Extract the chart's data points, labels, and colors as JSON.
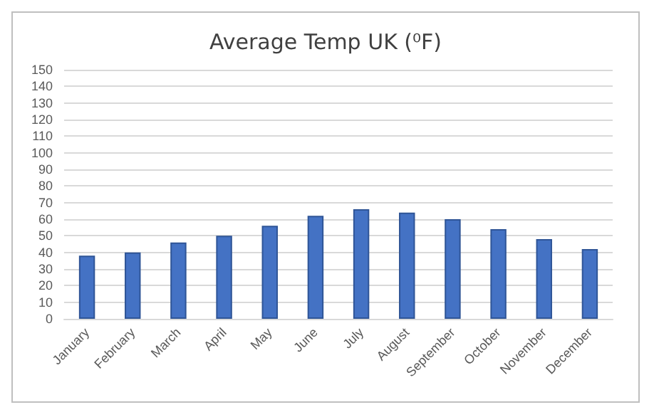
{
  "chart_data": {
    "type": "bar",
    "title": "Average Temp UK (⁰F)",
    "categories": [
      "January",
      "February",
      "March",
      "April",
      "May",
      "June",
      "July",
      "August",
      "September",
      "October",
      "November",
      "December"
    ],
    "values": [
      38,
      40,
      46,
      50,
      56,
      62,
      66,
      64,
      60,
      54,
      48,
      42
    ],
    "color": "#4472c4",
    "ylim": [
      0,
      150
    ],
    "yticks": [
      0,
      10,
      20,
      30,
      40,
      50,
      60,
      70,
      80,
      90,
      100,
      110,
      120,
      130,
      140,
      150
    ],
    "grid": true
  }
}
